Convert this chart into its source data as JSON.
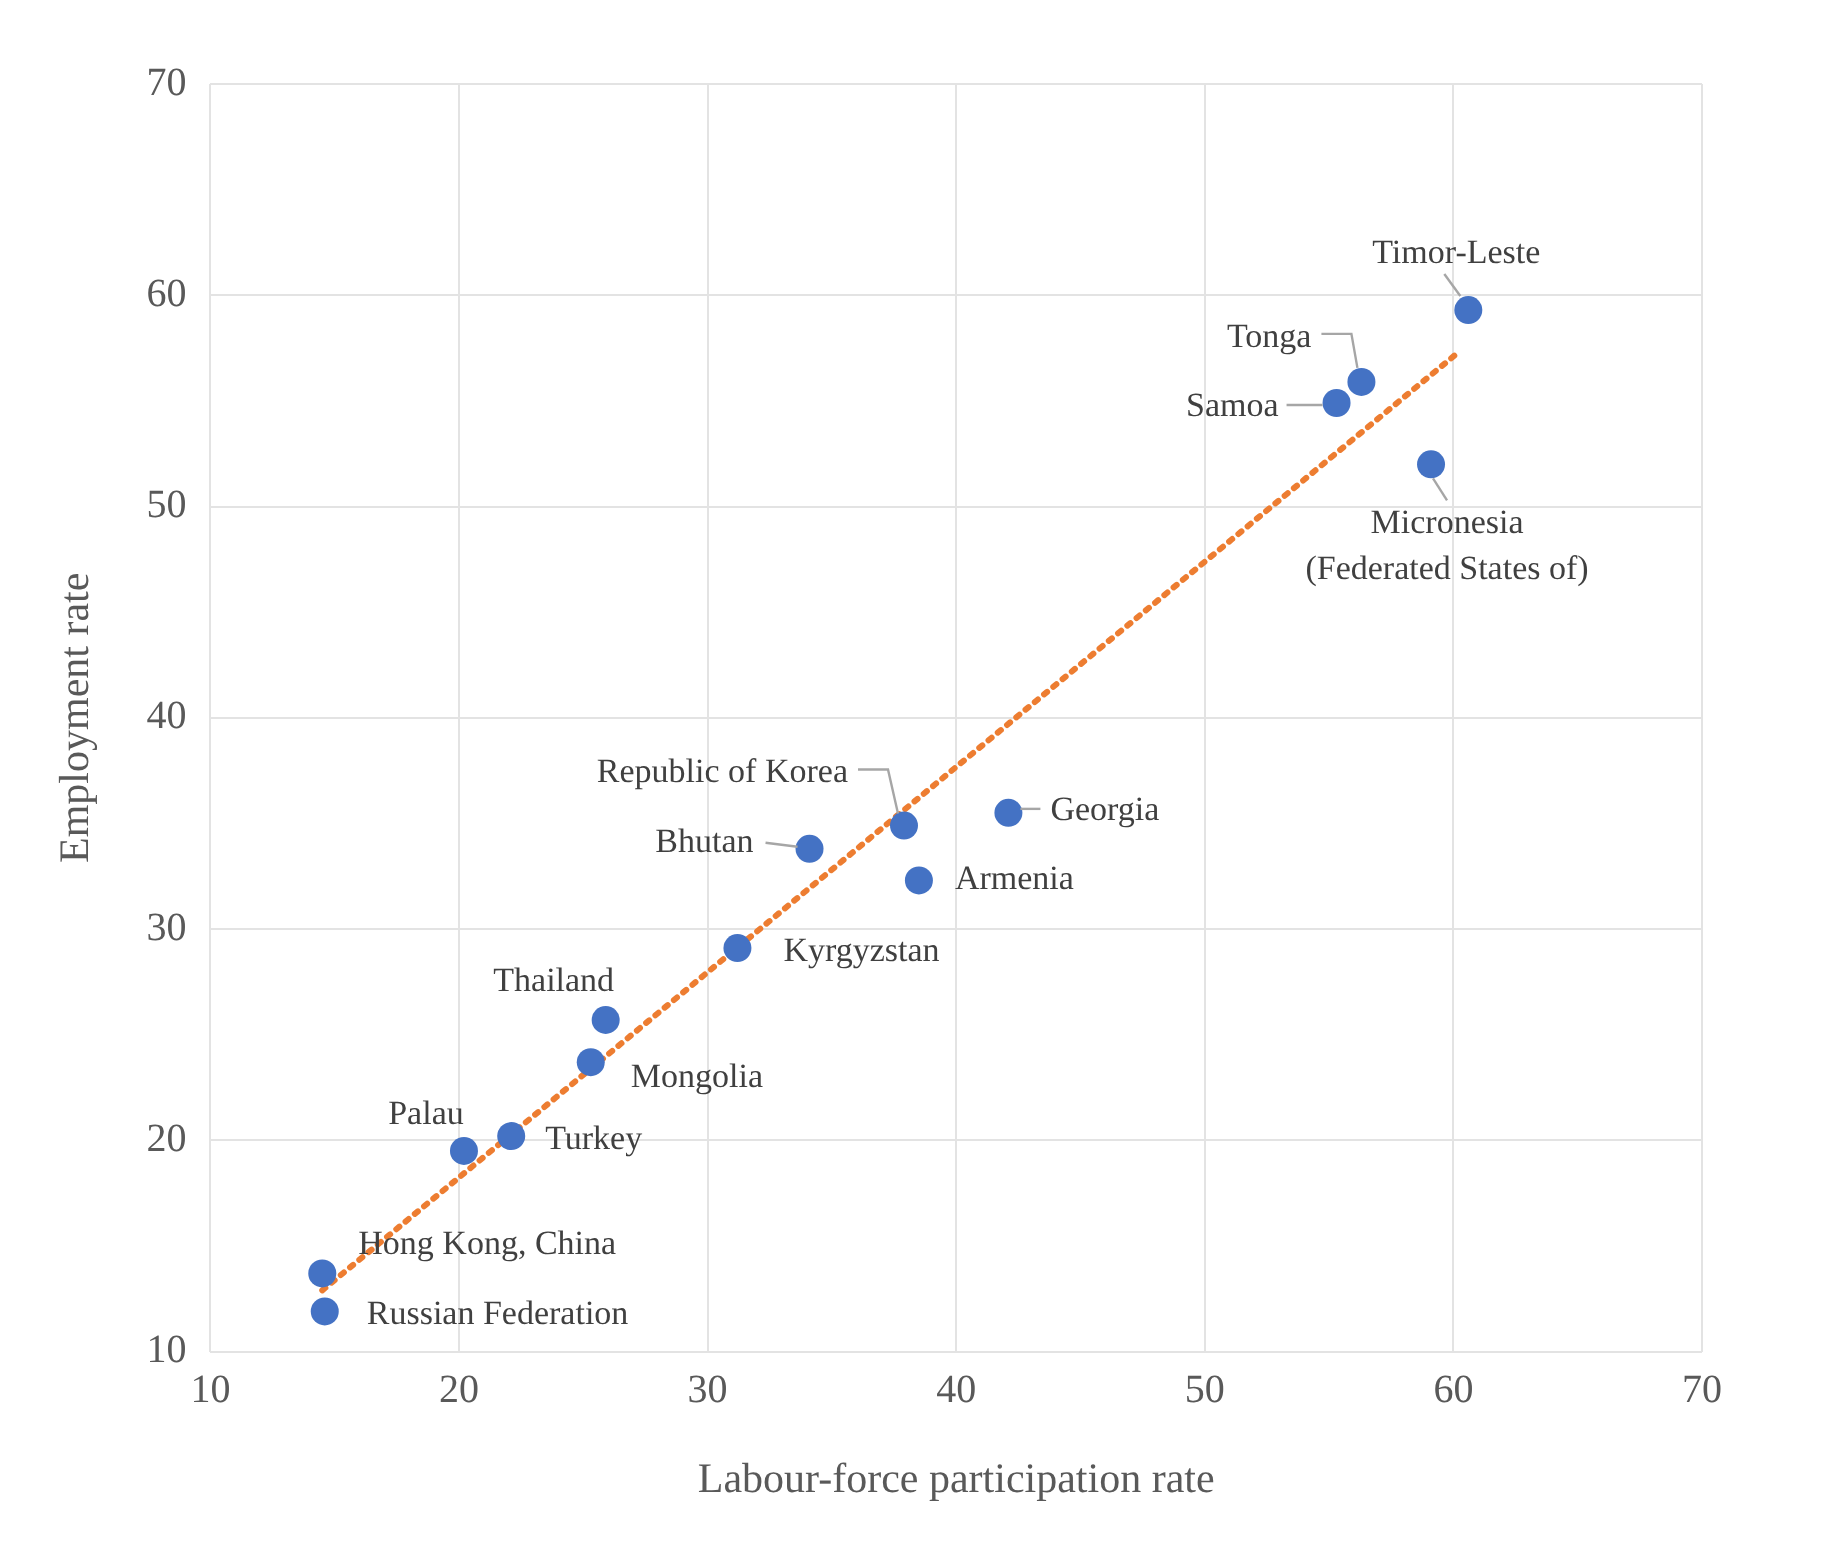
{
  "chart_data": {
    "type": "scatter",
    "xlabel": "Labour-force participation rate",
    "ylabel": "Employment rate",
    "xlim": [
      10,
      70
    ],
    "xticks": [
      10,
      20,
      30,
      40,
      50,
      60,
      70
    ],
    "ylim": [
      10,
      70
    ],
    "yticks": [
      10,
      20,
      30,
      40,
      50,
      60,
      70
    ],
    "grid": true,
    "legend": false,
    "marker": "circle",
    "series": [
      {
        "type": "scatter",
        "color": "#4472c4",
        "x": [
          60.6,
          56.3,
          55.3,
          59.1,
          42.1,
          37.9,
          34.1,
          38.5,
          31.2,
          25.9,
          25.3,
          22.1,
          20.2,
          14.5,
          14.6
        ],
        "values": [
          59.3,
          55.9,
          54.9,
          52.0,
          35.5,
          34.9,
          33.8,
          32.3,
          29.1,
          25.7,
          23.7,
          20.2,
          19.5,
          13.7,
          11.9
        ]
      },
      {
        "type": "line",
        "color": "#ed7d31",
        "line_style": "dotted",
        "marker": "none",
        "x": [
          14.5,
          60.2
        ],
        "values": [
          12.9,
          57.3
        ]
      }
    ],
    "annotations": [
      {
        "text": "Timor-Leste",
        "x": 60.6,
        "y": 59.3
      },
      {
        "text": "Tonga",
        "x": 56.3,
        "y": 55.9
      },
      {
        "text": "Samoa",
        "x": 55.3,
        "y": 54.9
      },
      {
        "text": "Micronesia\n(Federated States of)",
        "x": 59.1,
        "y": 52.0
      },
      {
        "text": "Georgia",
        "x": 42.1,
        "y": 35.5
      },
      {
        "text": "Republic of Korea",
        "x": 37.9,
        "y": 34.9
      },
      {
        "text": "Bhutan",
        "x": 34.1,
        "y": 33.8
      },
      {
        "text": "Armenia",
        "x": 38.5,
        "y": 32.3
      },
      {
        "text": "Kyrgyzstan",
        "x": 31.2,
        "y": 29.1
      },
      {
        "text": "Thailand",
        "x": 25.9,
        "y": 25.7
      },
      {
        "text": "Mongolia",
        "x": 25.3,
        "y": 23.7
      },
      {
        "text": "Turkey",
        "x": 22.1,
        "y": 20.2
      },
      {
        "text": "Palau",
        "x": 20.2,
        "y": 19.5
      },
      {
        "text": "Hong Kong, China",
        "x": 14.5,
        "y": 13.7
      },
      {
        "text": "Russian Federation",
        "x": 14.6,
        "y": 11.9
      }
    ]
  }
}
